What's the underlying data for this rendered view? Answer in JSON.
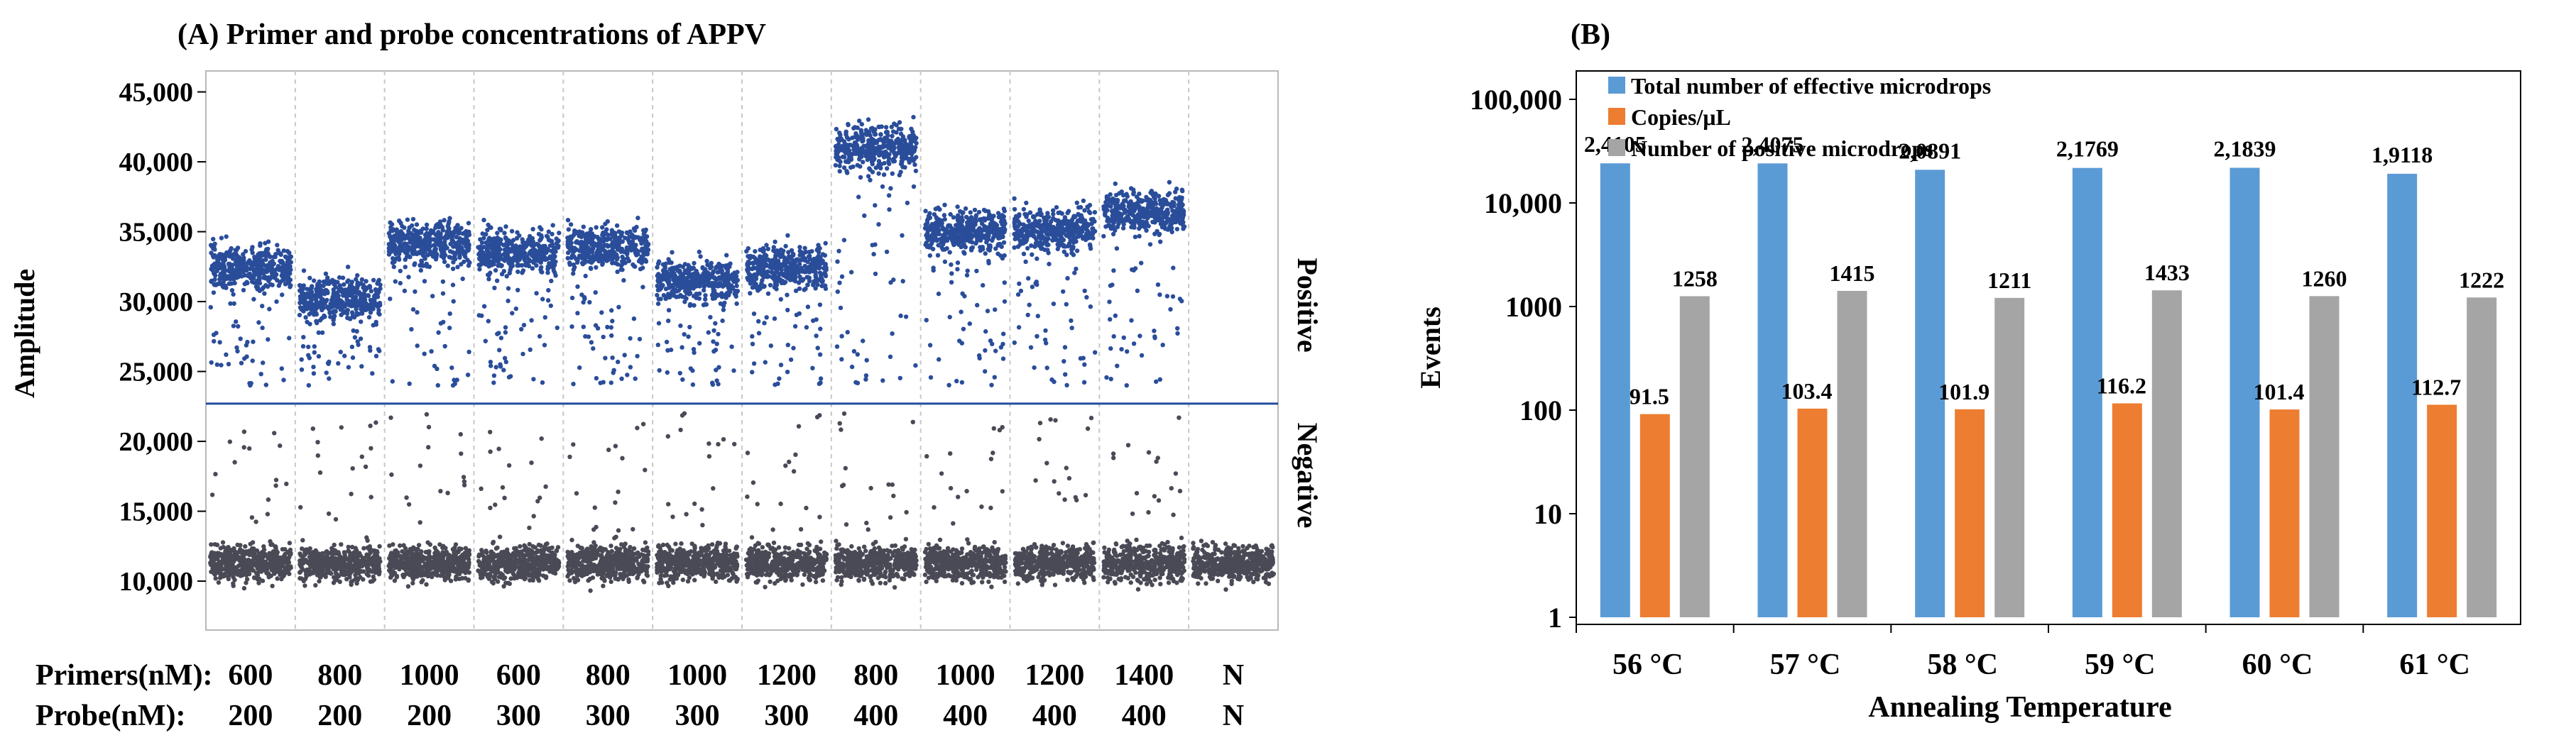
{
  "chart_data": [
    {
      "type": "scatter",
      "title": "(A) Primer and probe concentrations of APPV",
      "xlabel": "",
      "ylabel": "Amplitude",
      "ylim": [
        6500,
        46500
      ],
      "yticks": [
        10000,
        15000,
        20000,
        25000,
        30000,
        35000,
        40000,
        45000
      ],
      "ytick_labels": [
        "10,000",
        "15,000",
        "20,000",
        "25,000",
        "30,000",
        "35,000",
        "40,000",
        "45,000"
      ],
      "threshold": 22700,
      "threshold_color": "#1f4e9c",
      "right_labels": {
        "positive": "Positive",
        "negative": "Negative"
      },
      "row_headers": {
        "primers": "Primers(nM):",
        "probe": "Probe(nM):"
      },
      "primers": [
        "600",
        "800",
        "1000",
        "600",
        "800",
        "1000",
        "1200",
        "800",
        "1000",
        "1200",
        "1400",
        "N"
      ],
      "probes": [
        "200",
        "200",
        "200",
        "300",
        "300",
        "300",
        "300",
        "400",
        "400",
        "400",
        "400",
        "N"
      ],
      "positive_band_centers": [
        32400,
        30200,
        34200,
        33600,
        33900,
        31500,
        32400,
        41000,
        35100,
        35200,
        36500,
        null
      ],
      "negative_band_center": 11300,
      "positive_color": "#2a4d9a",
      "negative_color": "#4a4a56"
    },
    {
      "type": "bar",
      "title": "(B)",
      "xlabel": "Annealing Temperature",
      "ylabel": "Events",
      "yscale": "log",
      "ylim": [
        1,
        100000
      ],
      "yticks": [
        1,
        10,
        100,
        1000,
        10000,
        100000
      ],
      "ytick_labels": [
        "1",
        "10",
        "100",
        "1000",
        "10,000",
        "100,000"
      ],
      "categories": [
        "56 °C",
        "57 °C",
        "58 °C",
        "59 °C",
        "60 °C",
        "61 °C"
      ],
      "series": [
        {
          "name": "Total number of effective microdrops",
          "color": "#5b9bd5",
          "values": [
            24105,
            24075,
            20891,
            21769,
            21839,
            19118
          ],
          "labels": [
            "2,4105",
            "2,4075",
            "2,0891",
            "2,1769",
            "2,1839",
            "1,9118"
          ]
        },
        {
          "name": "Copies/μL",
          "color": "#ed7d31",
          "values": [
            91.5,
            103.4,
            101.9,
            116.2,
            101.4,
            112.7
          ],
          "labels": [
            "91.5",
            "103.4",
            "101.9",
            "116.2",
            "101.4",
            "112.7"
          ]
        },
        {
          "name": "Number of positive microdrops",
          "color": "#a5a5a5",
          "values": [
            1258,
            1415,
            1211,
            1433,
            1260,
            1222
          ],
          "labels": [
            "1258",
            "1415",
            "1211",
            "1433",
            "1260",
            "1222"
          ]
        }
      ],
      "legend": "top-left"
    }
  ]
}
